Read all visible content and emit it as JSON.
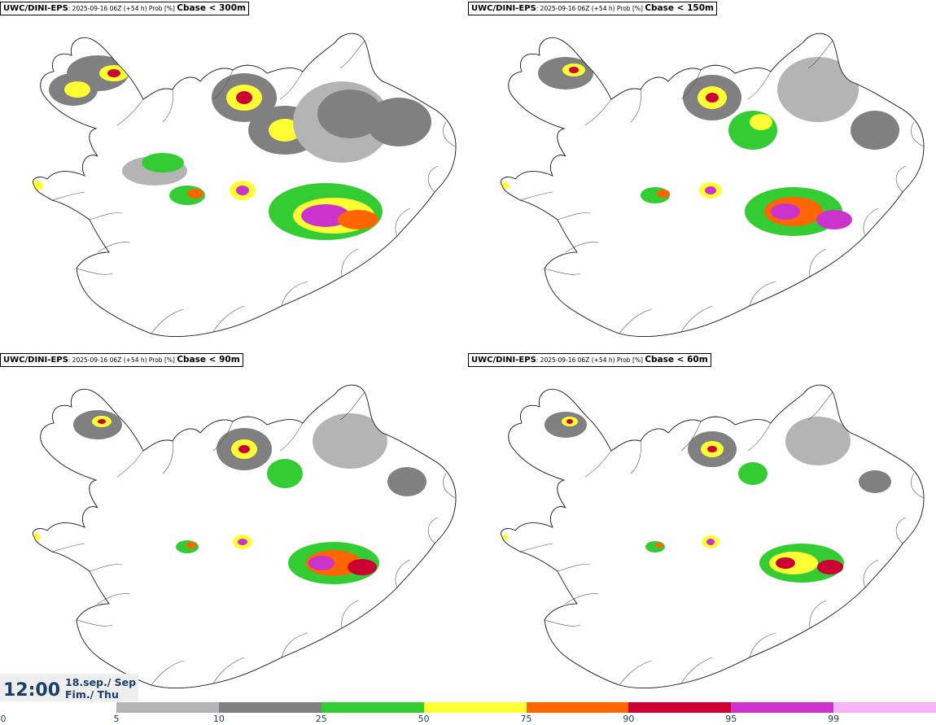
{
  "panels": [
    {
      "model": "UWC/DINI-EPS",
      "info": ": 2025-09-16 06Z (+54 h) Prob [%]",
      "threshold": "Cbase < 300m"
    },
    {
      "model": "UWC/DINI-EPS",
      "info": ": 2025-09-16 06Z (+54 h) Prob [%]",
      "threshold": "Cbase < 150m"
    },
    {
      "model": "UWC/DINI-EPS",
      "info": ": 2025-09-16 06Z (+54 h) Prob [%]",
      "threshold": "Cbase < 90m"
    },
    {
      "model": "UWC/DINI-EPS",
      "info": ": 2025-09-16 06Z (+54 h) Prob [%]",
      "threshold": "Cbase < 60m"
    }
  ],
  "valid": {
    "time": "12:00",
    "date_line": "18.sep./ Sep",
    "day_line": "Fim./ Thu"
  },
  "legend": {
    "ticks": [
      "0",
      "5",
      "10",
      "25",
      "50",
      "75",
      "90",
      "95",
      "99"
    ],
    "colors": [
      "#b4b4b4",
      "#808080",
      "#33cc33",
      "#ffff33",
      "#ff6600",
      "#cc0033",
      "#cc33cc",
      "#f7b3f7"
    ]
  }
}
